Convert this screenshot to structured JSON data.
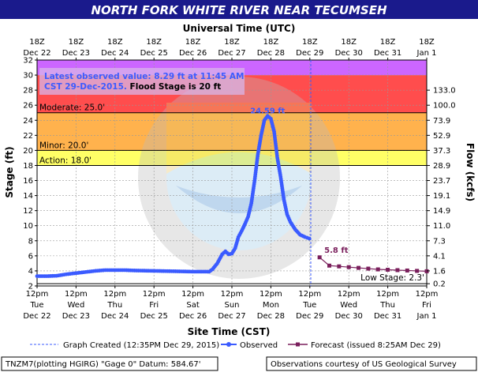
{
  "chart_data": {
    "type": "line",
    "title": "NORTH FORK WHITE RIVER NEAR TECUMSEH",
    "top_axis_title": "Universal Time (UTC)",
    "xlabel": "Site Time (CST)",
    "ylabel": "Stage (ft)",
    "y2label": "Flow (kcfs)",
    "ylim": [
      2,
      32
    ],
    "xlim": [
      "2015-12-22 12:00",
      "2016-01-01 12:00"
    ],
    "y_ticks": [
      "2",
      "4",
      "6",
      "8",
      "10",
      "12",
      "14",
      "16",
      "18",
      "20",
      "22",
      "24",
      "26",
      "28",
      "30",
      "32"
    ],
    "x_ticks_bottom": [
      {
        "top": "12pm",
        "mid": "Tue",
        "bot": "Dec 22"
      },
      {
        "top": "12pm",
        "mid": "Wed",
        "bot": "Dec 23"
      },
      {
        "top": "12pm",
        "mid": "Thu",
        "bot": "Dec 24"
      },
      {
        "top": "12pm",
        "mid": "Fri",
        "bot": "Dec 25"
      },
      {
        "top": "12pm",
        "mid": "Sat",
        "bot": "Dec 26"
      },
      {
        "top": "12pm",
        "mid": "Sun",
        "bot": "Dec 27"
      },
      {
        "top": "12pm",
        "mid": "Mon",
        "bot": "Dec 28"
      },
      {
        "top": "12pm",
        "mid": "Tue",
        "bot": "Dec 29"
      },
      {
        "top": "12pm",
        "mid": "Wed",
        "bot": "Dec 30"
      },
      {
        "top": "12pm",
        "mid": "Thu",
        "bot": "Dec 31"
      },
      {
        "top": "12pm",
        "mid": "Fri",
        "bot": "Jan 1"
      }
    ],
    "x_ticks_top": [
      {
        "time": "18Z",
        "date": "Dec 22"
      },
      {
        "time": "18Z",
        "date": "Dec 23"
      },
      {
        "time": "18Z",
        "date": "Dec 24"
      },
      {
        "time": "18Z",
        "date": "Dec 25"
      },
      {
        "time": "18Z",
        "date": "Dec 26"
      },
      {
        "time": "18Z",
        "date": "Dec 27"
      },
      {
        "time": "18Z",
        "date": "Dec 28"
      },
      {
        "time": "18Z",
        "date": "Dec 29"
      },
      {
        "time": "18Z",
        "date": "Dec 30"
      },
      {
        "time": "18Z",
        "date": "Dec 31"
      },
      {
        "time": "18Z",
        "date": "Jan 1"
      }
    ],
    "flow_ticks": [
      {
        "stage": 2.3,
        "label": "0.2"
      },
      {
        "stage": 4,
        "label": "1.6"
      },
      {
        "stage": 6,
        "label": "4.1"
      },
      {
        "stage": 8,
        "label": "7.3"
      },
      {
        "stage": 10,
        "label": "11.0"
      },
      {
        "stage": 12,
        "label": "14.9"
      },
      {
        "stage": 14,
        "label": "19.1"
      },
      {
        "stage": 16,
        "label": "23.7"
      },
      {
        "stage": 18,
        "label": "28.9"
      },
      {
        "stage": 20,
        "label": "37.3"
      },
      {
        "stage": 22,
        "label": "52.9"
      },
      {
        "stage": 24,
        "label": "73.9"
      },
      {
        "stage": 26,
        "label": "100.0"
      },
      {
        "stage": 28,
        "label": "133.0"
      }
    ],
    "bands": [
      {
        "from": 2,
        "to": 18,
        "color": "#ffffff"
      },
      {
        "from": 18,
        "to": 20,
        "color": "#ffff66"
      },
      {
        "from": 20,
        "to": 25,
        "color": "#ffb24d"
      },
      {
        "from": 25,
        "to": 30,
        "color": "#ff4d4d"
      },
      {
        "from": 30,
        "to": 32,
        "color": "#cc66ff"
      }
    ],
    "thresholds": [
      {
        "value": 25,
        "label": "Moderate: 25.0'"
      },
      {
        "value": 20,
        "label": "Minor: 20.0'"
      },
      {
        "value": 18,
        "label": "Action: 18.0'"
      }
    ],
    "low_stage": {
      "value": 2.3,
      "label": "Low Stage: 2.3'"
    },
    "annotation": {
      "line1": "Latest observed value: 8.29 ft at 11:45 AM",
      "line2a": "CST 29-Dec-2015.",
      "line2b": " Flood Stage is 20 ft"
    },
    "created_time": "2015-12-29 12:35",
    "observed": {
      "name": "Observed",
      "color": "#3b5bff",
      "peak_label": "24.59 ft",
      "points": [
        [
          "2015-12-22 12:00",
          3.3
        ],
        [
          "2015-12-22 18:00",
          3.3
        ],
        [
          "2015-12-23 00:00",
          3.35
        ],
        [
          "2015-12-23 06:00",
          3.55
        ],
        [
          "2015-12-23 12:00",
          3.7
        ],
        [
          "2015-12-23 18:00",
          3.85
        ],
        [
          "2015-12-24 00:00",
          4.0
        ],
        [
          "2015-12-24 06:00",
          4.1
        ],
        [
          "2015-12-24 12:00",
          4.1
        ],
        [
          "2015-12-24 18:00",
          4.1
        ],
        [
          "2015-12-25 00:00",
          4.05
        ],
        [
          "2015-12-25 12:00",
          4.0
        ],
        [
          "2015-12-26 00:00",
          3.95
        ],
        [
          "2015-12-26 12:00",
          3.9
        ],
        [
          "2015-12-26 22:00",
          3.9
        ],
        [
          "2015-12-27 00:00",
          4.2
        ],
        [
          "2015-12-27 03:00",
          5.0
        ],
        [
          "2015-12-27 06:00",
          6.2
        ],
        [
          "2015-12-27 08:00",
          6.6
        ],
        [
          "2015-12-27 10:00",
          6.2
        ],
        [
          "2015-12-27 12:00",
          6.3
        ],
        [
          "2015-12-27 14:00",
          7.0
        ],
        [
          "2015-12-27 16:00",
          8.5
        ],
        [
          "2015-12-27 18:00",
          9.3
        ],
        [
          "2015-12-27 20:00",
          10.2
        ],
        [
          "2015-12-27 22:00",
          11.2
        ],
        [
          "2015-12-28 00:00",
          13.0
        ],
        [
          "2015-12-28 02:00",
          16.0
        ],
        [
          "2015-12-28 04:00",
          19.5
        ],
        [
          "2015-12-28 06:00",
          22.0
        ],
        [
          "2015-12-28 08:00",
          24.0
        ],
        [
          "2015-12-28 10:00",
          24.59
        ],
        [
          "2015-12-28 12:00",
          24.2
        ],
        [
          "2015-12-28 14:00",
          22.5
        ],
        [
          "2015-12-28 16:00",
          19.0
        ],
        [
          "2015-12-28 18:00",
          16.5
        ],
        [
          "2015-12-28 20:00",
          13.5
        ],
        [
          "2015-12-28 22:00",
          11.5
        ],
        [
          "2015-12-29 00:00",
          10.5
        ],
        [
          "2015-12-29 03:00",
          9.5
        ],
        [
          "2015-12-29 06:00",
          8.8
        ],
        [
          "2015-12-29 09:00",
          8.5
        ],
        [
          "2015-12-29 11:45",
          8.29
        ]
      ]
    },
    "forecast": {
      "name": "Forecast (issued 8:25AM Dec 29)",
      "color": "#7a1f5c",
      "first_label": "5.8 ft",
      "points": [
        [
          "2015-12-29 18:00",
          5.8
        ],
        [
          "2015-12-30 00:00",
          4.7
        ],
        [
          "2015-12-30 06:00",
          4.6
        ],
        [
          "2015-12-30 12:00",
          4.5
        ],
        [
          "2015-12-30 18:00",
          4.4
        ],
        [
          "2015-12-31 00:00",
          4.3
        ],
        [
          "2015-12-31 06:00",
          4.2
        ],
        [
          "2015-12-31 12:00",
          4.15
        ],
        [
          "2015-12-31 18:00",
          4.1
        ],
        [
          "2016-01-01 00:00",
          4.05
        ],
        [
          "2016-01-01 06:00",
          4.0
        ],
        [
          "2016-01-01 12:00",
          3.95
        ]
      ]
    },
    "legend": {
      "created": "Graph Created (12:35PM Dec 29, 2015)",
      "observed": "Observed",
      "forecast": "Forecast (issued 8:25AM Dec 29)"
    },
    "footer": {
      "left": "TNZM7(plotting HGIRG) \"Gage 0\" Datum: 584.67'",
      "right": "Observations courtesy of US Geological Survey"
    },
    "colors": {
      "title_bg": "#1a1a8c",
      "title_text": "#ffffff",
      "annotation_text": "#3b5bff"
    }
  }
}
